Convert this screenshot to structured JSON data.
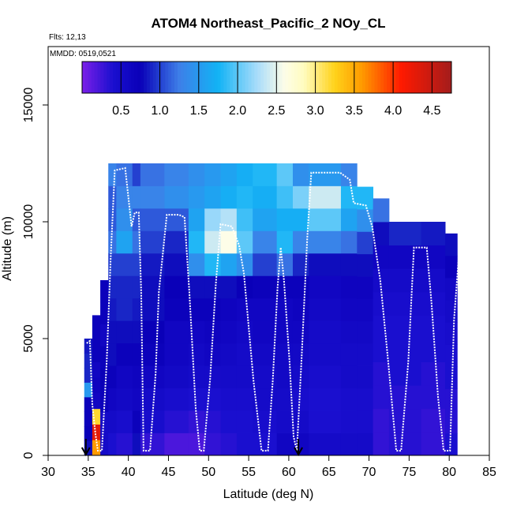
{
  "chart_data": {
    "type": "heatmap",
    "title": "ATOM4 Northeast_Pacific_2 NOy_CL",
    "subtitle_flights": "Flts: 12,13",
    "subtitle_dates": "MMDD: 0519,0521",
    "xlabel": "Latitude (deg N)",
    "ylabel": "Altitude (m)",
    "xlim": [
      30,
      85
    ],
    "ylim": [
      0,
      17500
    ],
    "x_ticks": [
      30,
      35,
      40,
      45,
      50,
      55,
      60,
      65,
      70,
      75,
      80,
      85
    ],
    "x_tick_labels": [
      "30",
      "35",
      "40",
      "45",
      "50",
      "55",
      "60",
      "65",
      "70",
      "75",
      "80",
      "85"
    ],
    "y_ticks": [
      0,
      5000,
      10000,
      15000
    ],
    "y_tick_labels": [
      "0",
      "5000",
      "10000",
      "15000"
    ],
    "colorbar": {
      "range": [
        0,
        4.75
      ],
      "ticks": [
        0.5,
        1.0,
        1.5,
        2.0,
        2.5,
        3.0,
        3.5,
        4.0,
        4.5
      ],
      "tick_labels": [
        "0.5",
        "1.0",
        "1.5",
        "2.0",
        "2.5",
        "3.0",
        "3.5",
        "4.0",
        "4.5"
      ],
      "color_stops": [
        {
          "v": 0.0,
          "c": "#7b1fe8"
        },
        {
          "v": 0.4,
          "c": "#1a0fcf"
        },
        {
          "v": 0.75,
          "c": "#0a00b8"
        },
        {
          "v": 1.25,
          "c": "#3d7fe8"
        },
        {
          "v": 1.75,
          "c": "#12b3f5"
        },
        {
          "v": 2.25,
          "c": "#a8dcfa"
        },
        {
          "v": 2.6,
          "c": "#fdfde8"
        },
        {
          "v": 2.85,
          "c": "#fffcc0"
        },
        {
          "v": 3.25,
          "c": "#ffd21a"
        },
        {
          "v": 3.6,
          "c": "#ff9a00"
        },
        {
          "v": 4.1,
          "c": "#ff1a00"
        },
        {
          "v": 4.75,
          "c": "#a31c1c"
        }
      ]
    },
    "marker_arrows_lat": [
      34.7,
      61.2
    ],
    "flight_track": [
      [
        34.8,
        4800
      ],
      [
        35.2,
        4900
      ],
      [
        35.5,
        2200
      ],
      [
        35.9,
        900
      ],
      [
        36.2,
        200
      ],
      [
        36.7,
        200
      ],
      [
        37.3,
        4000
      ],
      [
        37.8,
        8500
      ],
      [
        38.3,
        12200
      ],
      [
        39.6,
        12300
      ],
      [
        40.4,
        9800
      ],
      [
        40.8,
        10400
      ],
      [
        41.3,
        10400
      ],
      [
        41.6,
        7000
      ],
      [
        41.9,
        200
      ],
      [
        42.7,
        200
      ],
      [
        43.4,
        3500
      ],
      [
        43.8,
        7000
      ],
      [
        44.8,
        10300
      ],
      [
        46.3,
        10300
      ],
      [
        47.0,
        10200
      ],
      [
        47.6,
        7000
      ],
      [
        48.4,
        2000
      ],
      [
        48.9,
        200
      ],
      [
        49.4,
        200
      ],
      [
        50.2,
        3300
      ],
      [
        50.9,
        7300
      ],
      [
        51.5,
        9900
      ],
      [
        52.9,
        9800
      ],
      [
        53.8,
        9000
      ],
      [
        54.4,
        7800
      ],
      [
        55.6,
        3200
      ],
      [
        56.6,
        200
      ],
      [
        57.4,
        200
      ],
      [
        58.0,
        3200
      ],
      [
        58.6,
        7200
      ],
      [
        59.0,
        8900
      ],
      [
        59.4,
        7500
      ],
      [
        60.1,
        4000
      ],
      [
        60.6,
        800
      ],
      [
        61.0,
        200
      ],
      [
        61.6,
        4200
      ],
      [
        62.3,
        9300
      ],
      [
        62.8,
        12100
      ],
      [
        66.4,
        12100
      ],
      [
        67.6,
        11800
      ],
      [
        68.1,
        10800
      ],
      [
        69.6,
        10700
      ],
      [
        70.4,
        9800
      ],
      [
        71.4,
        7500
      ],
      [
        72.4,
        4000
      ],
      [
        73.4,
        200
      ],
      [
        74.0,
        200
      ],
      [
        74.9,
        4000
      ],
      [
        75.6,
        8900
      ],
      [
        77.2,
        8900
      ],
      [
        77.8,
        6500
      ],
      [
        78.6,
        2500
      ],
      [
        79.3,
        200
      ],
      [
        80.1,
        200
      ],
      [
        80.6,
        5800
      ],
      [
        81.3,
        9000
      ],
      [
        81.8,
        9500
      ]
    ],
    "columns": [
      {
        "x0": 34.5,
        "x1": 35.5,
        "top": 5000,
        "vals": [
          0.8,
          0.75,
          0.7,
          0.7,
          1.5,
          0.9,
          0.9,
          0.85
        ]
      },
      {
        "x0": 35.5,
        "x1": 36.5,
        "top": 6000,
        "vals": [
          3.6,
          4.3,
          3.2,
          0.6,
          0.65,
          0.6,
          0.7,
          0.7,
          0.7
        ]
      },
      {
        "x0": 36.5,
        "x1": 37.5,
        "top": 7500,
        "vals": [
          0.5,
          0.5,
          0.7,
          0.75,
          0.7,
          0.6,
          0.7,
          0.7
        ]
      },
      {
        "x0": 37.5,
        "x1": 38.5,
        "top": 12500,
        "vals": [
          0.4,
          0.5,
          0.6,
          0.7,
          0.8,
          0.8,
          0.85,
          0.9,
          1.0,
          1.2,
          1.1,
          1.1,
          1.3
        ]
      },
      {
        "x0": 38.5,
        "x1": 40.5,
        "top": 12500,
        "vals": [
          0.35,
          0.45,
          0.55,
          0.6,
          0.7,
          0.8,
          0.9,
          0.9,
          1.0,
          1.6,
          1.4,
          1.3,
          1.2
        ]
      },
      {
        "x0": 40.5,
        "x1": 41.5,
        "top": 12500,
        "vals": [
          0.8,
          0.7,
          0.6,
          0.65,
          0.7,
          0.8,
          0.85,
          0.9,
          1.0,
          1.2,
          1.1,
          1.3,
          1.0
        ]
      },
      {
        "x0": 41.5,
        "x1": 44.5,
        "top": 12500,
        "vals": [
          0.3,
          0.45,
          0.5,
          0.6,
          0.7,
          0.75,
          0.8,
          0.8,
          0.85,
          1.0,
          1.1,
          1.3,
          1.2
        ]
      },
      {
        "x0": 44.5,
        "x1": 47.5,
        "top": 12500,
        "vals": [
          0.2,
          0.35,
          0.45,
          0.55,
          0.6,
          0.6,
          0.7,
          0.75,
          0.8,
          0.9,
          1.1,
          1.4,
          1.3
        ]
      },
      {
        "x0": 47.5,
        "x1": 49.5,
        "top": 12500,
        "vals": [
          0.2,
          0.3,
          0.4,
          0.5,
          0.55,
          0.6,
          0.7,
          0.8,
          1.4,
          1.8,
          1.6,
          1.5,
          1.4
        ]
      },
      {
        "x0": 49.5,
        "x1": 51.5,
        "top": 12500,
        "vals": [
          0.3,
          0.35,
          0.4,
          0.5,
          0.6,
          0.65,
          0.7,
          0.8,
          1.8,
          2.4,
          2.2,
          1.6,
          1.5
        ]
      },
      {
        "x0": 51.5,
        "x1": 53.5,
        "top": 12500,
        "vals": [
          0.35,
          0.4,
          0.45,
          0.5,
          0.55,
          0.6,
          0.65,
          0.8,
          1.6,
          2.6,
          2.3,
          1.7,
          1.6
        ]
      },
      {
        "x0": 53.5,
        "x1": 55.5,
        "top": 12500,
        "vals": [
          0.4,
          0.4,
          0.45,
          0.5,
          0.5,
          0.55,
          0.6,
          0.75,
          1.4,
          2.0,
          1.9,
          1.8,
          1.7
        ]
      },
      {
        "x0": 55.5,
        "x1": 58.5,
        "top": 12500,
        "vals": [
          0.4,
          0.45,
          0.5,
          0.5,
          0.55,
          0.6,
          0.6,
          0.7,
          1.0,
          1.3,
          1.6,
          1.7,
          1.8
        ]
      },
      {
        "x0": 58.5,
        "x1": 60.5,
        "top": 12500,
        "vals": [
          0.6,
          0.5,
          0.5,
          0.55,
          0.55,
          0.6,
          0.6,
          0.7,
          1.2,
          1.8,
          1.7,
          1.9,
          2.0
        ]
      },
      {
        "x0": 60.5,
        "x1": 62.5,
        "top": 12500,
        "vals": [
          0.6,
          0.5,
          0.45,
          0.5,
          0.55,
          0.6,
          0.65,
          0.7,
          0.9,
          1.3,
          1.7,
          2.1,
          1.4
        ]
      },
      {
        "x0": 62.5,
        "x1": 66.5,
        "top": 12500,
        "vals": [
          0.5,
          0.4,
          0.4,
          0.45,
          0.5,
          0.5,
          0.55,
          0.6,
          0.8,
          1.3,
          2.0,
          2.4,
          1.5
        ]
      },
      {
        "x0": 66.5,
        "x1": 68.5,
        "top": 12500,
        "vals": [
          0.5,
          0.45,
          0.45,
          0.5,
          0.5,
          0.55,
          0.6,
          0.65,
          0.8,
          1.2,
          1.6,
          1.8,
          1.3
        ]
      },
      {
        "x0": 68.5,
        "x1": 70.5,
        "top": 11500,
        "vals": [
          0.5,
          0.45,
          0.45,
          0.5,
          0.5,
          0.55,
          0.6,
          0.65,
          0.8,
          1.0,
          1.4,
          1.8
        ]
      },
      {
        "x0": 70.5,
        "x1": 72.5,
        "top": 11000,
        "vals": [
          0.3,
          0.3,
          0.35,
          0.35,
          0.4,
          0.4,
          0.45,
          0.5,
          0.6,
          0.8,
          1.2
        ]
      },
      {
        "x0": 72.5,
        "x1": 76.5,
        "top": 10000,
        "vals": [
          0.35,
          0.35,
          0.35,
          0.4,
          0.4,
          0.4,
          0.45,
          0.5,
          0.6,
          0.9
        ]
      },
      {
        "x0": 76.5,
        "x1": 79.5,
        "top": 10000,
        "vals": [
          0.3,
          0.3,
          0.35,
          0.35,
          0.4,
          0.4,
          0.45,
          0.5,
          0.6,
          0.85
        ]
      },
      {
        "x0": 79.5,
        "x1": 81.0,
        "top": 9500,
        "vals": [
          0.4,
          0.35,
          0.35,
          0.4,
          0.4,
          0.45,
          0.5,
          0.55,
          0.7,
          0.8
        ]
      }
    ]
  }
}
